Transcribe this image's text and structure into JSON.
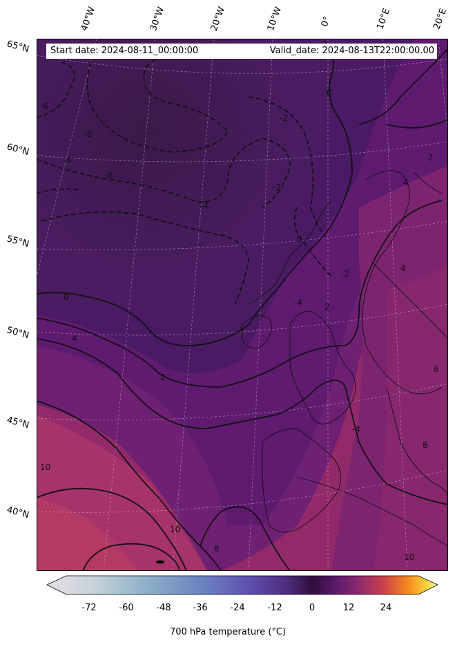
{
  "header": {
    "start_date": "Start date: 2024-08-11_00:00:00",
    "valid_date": "Valid_date: 2024-08-13T22:00:00.00"
  },
  "latitude_labels": [
    "65°N",
    "60°N",
    "55°N",
    "50°N",
    "45°N",
    "40°N"
  ],
  "longitude_labels": [
    "40°W",
    "30°W",
    "20°W",
    "10°W",
    "0°",
    "10°E",
    "20°E"
  ],
  "contour_labels": [
    "-6",
    "-8",
    "-6",
    "-4",
    "-2",
    "-2",
    "0",
    "0",
    "4",
    "2",
    "10",
    "10",
    "8",
    "10",
    "6",
    "2",
    "4",
    "-2",
    "-4",
    "8",
    "2",
    "-8",
    "0",
    "-4",
    "4"
  ],
  "colorbar": {
    "ticks": [
      "-72",
      "-60",
      "-48",
      "-36",
      "-24",
      "-12",
      "0",
      "12",
      "24"
    ],
    "label": "700 hPa temperature (°C)"
  },
  "colors": {
    "cold": "#3b1a4e",
    "mid": "#5a1a6e",
    "warm": "#9c2e6a",
    "warmest": "#b03a60"
  }
}
